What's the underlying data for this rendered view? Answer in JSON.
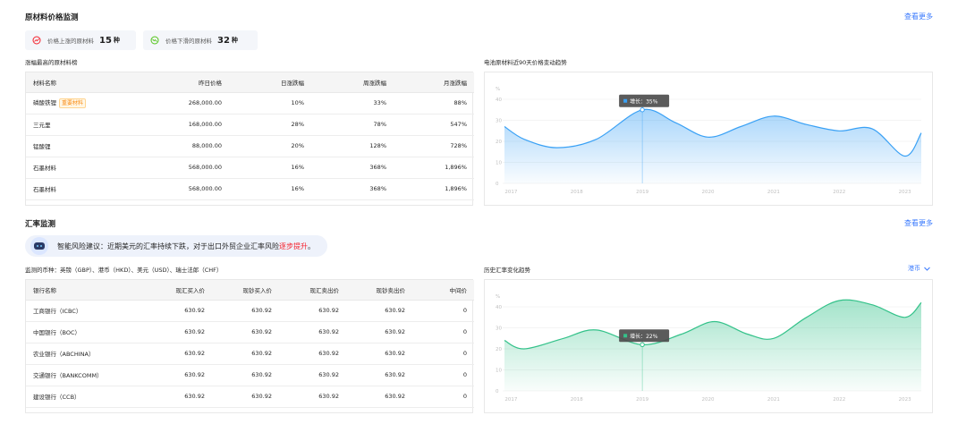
{
  "raw": {
    "title": "原材料价格监测",
    "more": "查看更多",
    "stats": [
      {
        "label": "价格上涨的原材料",
        "value": "15",
        "unit": "种",
        "color": "#f5222d"
      },
      {
        "label": "价格下滑的原材料",
        "value": "32",
        "unit": "种",
        "color": "#52c41a"
      }
    ],
    "table_title": "涨幅最高的原材料榜",
    "columns": [
      "材料名称",
      "昨日价格",
      "日涨跌幅",
      "周涨跌幅",
      "月涨跌幅"
    ],
    "rows": [
      {
        "name": "磷酸铁锂",
        "tag": "重要材料",
        "c1": "268,000.00",
        "c2": "10%",
        "c3": "33%",
        "c4": "88%"
      },
      {
        "name": "三元里",
        "tag": "",
        "c1": "168,000.00",
        "c2": "28%",
        "c3": "78%",
        "c4": "547%"
      },
      {
        "name": "锰酸锂",
        "tag": "",
        "c1": "88,000.00",
        "c2": "20%",
        "c3": "128%",
        "c4": "728%"
      },
      {
        "name": "石墨材料",
        "tag": "",
        "c1": "568,000.00",
        "c2": "16%",
        "c3": "368%",
        "c4": "1,896%"
      },
      {
        "name": "石墨材料",
        "tag": "",
        "c1": "568,000.00",
        "c2": "16%",
        "c3": "368%",
        "c4": "1,896%"
      }
    ],
    "chart_title": "电池原材料近90天价格变动趋势",
    "tooltip": "增长：35%"
  },
  "fx": {
    "title": "汇率监测",
    "more": "查看更多",
    "advice_prefix": "智能风险建议：近期美元的汇率持续下跌，对于出口外贸企业汇率风险",
    "advice_highlight": "逐步提升",
    "advice_suffix": "。",
    "currencies": "监测的币种：英镑（GBP）、港币（HKD）、美元（USD）、瑞士法郎（CHF）",
    "columns": [
      "银行名称",
      "现汇买入价",
      "现钞买入价",
      "现汇卖出价",
      "现钞卖出价",
      "中间价"
    ],
    "rows": [
      {
        "name": "工商银行（ICBC）",
        "c1": "630.92",
        "c2": "630.92",
        "c3": "630.92",
        "c4": "630.92",
        "c5": "0"
      },
      {
        "name": "中国银行（BOC）",
        "c1": "630.92",
        "c2": "630.92",
        "c3": "630.92",
        "c4": "630.92",
        "c5": "0"
      },
      {
        "name": "农业银行（ABCHINA）",
        "c1": "630.92",
        "c2": "630.92",
        "c3": "630.92",
        "c4": "630.92",
        "c5": "0"
      },
      {
        "name": "交通银行（BANKCOMM）",
        "c1": "630.92",
        "c2": "630.92",
        "c3": "630.92",
        "c4": "630.92",
        "c5": "0"
      },
      {
        "name": "建设银行（CCB）",
        "c1": "630.92",
        "c2": "630.92",
        "c3": "630.92",
        "c4": "630.92",
        "c5": "0"
      }
    ],
    "chart_title": "历史汇率变化趋势",
    "currency_select": "港币",
    "tooltip": "增长：22%"
  },
  "chart_data": [
    {
      "type": "area",
      "title": "",
      "ylabel": "%",
      "ylim": [
        0,
        40
      ],
      "yticks": [
        0,
        10,
        20,
        30,
        40
      ],
      "categories": [
        "2017",
        "2018",
        "2019",
        "2020",
        "2021",
        "2022",
        "2023"
      ],
      "x": [
        2016.9,
        2017.2,
        2017.7,
        2018.3,
        2019.0,
        2019.5,
        2020.0,
        2020.5,
        2021.0,
        2021.5,
        2022.0,
        2022.5,
        2023.0,
        2023.25
      ],
      "y": [
        27,
        21,
        17,
        21,
        35,
        29,
        22,
        27,
        32,
        28,
        25,
        26,
        13,
        24
      ],
      "highlight": {
        "x": 2019.0,
        "y": 35
      },
      "color": "#3aa1f5",
      "grid": true
    },
    {
      "type": "area",
      "title": "",
      "ylabel": "%",
      "ylim": [
        0,
        40
      ],
      "yticks": [
        0,
        10,
        20,
        30,
        40
      ],
      "categories": [
        "2017",
        "2018",
        "2019",
        "2020",
        "2021",
        "2022",
        "2023"
      ],
      "x": [
        2016.9,
        2017.2,
        2017.8,
        2018.3,
        2019.0,
        2019.6,
        2020.1,
        2020.6,
        2021.0,
        2021.5,
        2022.0,
        2022.5,
        2023.0,
        2023.25
      ],
      "y": [
        24,
        20,
        25,
        29,
        22,
        27,
        33,
        27,
        25,
        35,
        43,
        41,
        35,
        42
      ],
      "highlight": {
        "x": 2019.0,
        "y": 22
      },
      "color": "#34c28a",
      "grid": true
    }
  ]
}
